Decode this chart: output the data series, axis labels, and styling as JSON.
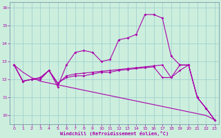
{
  "xlabel": "Windchill (Refroidissement éolien,°C)",
  "bg_color": "#cceedd",
  "line_color": "#aa00aa",
  "grid_color": "#99cccc",
  "x_ticks": [
    0,
    1,
    2,
    3,
    4,
    5,
    6,
    7,
    8,
    9,
    10,
    11,
    12,
    13,
    14,
    15,
    16,
    17,
    18,
    19,
    20,
    21,
    22,
    23
  ],
  "ylim": [
    9.5,
    16.3
  ],
  "yticks": [
    10,
    11,
    12,
    13,
    14,
    15,
    16
  ],
  "line1_y": [
    12.8,
    11.9,
    12.0,
    12.0,
    12.5,
    11.6,
    12.8,
    13.5,
    13.6,
    13.5,
    13.0,
    13.1,
    14.2,
    14.3,
    14.5,
    15.6,
    15.6,
    15.4,
    13.3,
    12.8,
    12.8,
    11.0,
    10.4,
    9.75
  ],
  "line2_y": [
    12.8,
    11.9,
    12.0,
    12.1,
    12.5,
    11.8,
    12.1,
    12.2,
    12.2,
    12.3,
    12.4,
    12.4,
    12.5,
    12.55,
    12.6,
    12.65,
    12.7,
    12.1,
    12.1,
    12.5,
    12.8,
    11.0,
    10.4,
    9.75
  ],
  "line3_y": [
    12.8,
    12.4,
    12.1,
    11.9,
    11.8,
    11.7,
    11.6,
    11.5,
    11.4,
    11.3,
    11.2,
    11.1,
    11.0,
    10.9,
    10.8,
    10.7,
    10.6,
    10.5,
    10.4,
    10.3,
    10.2,
    10.1,
    10.0,
    9.75
  ],
  "line4_y": [
    12.8,
    11.9,
    12.0,
    12.1,
    12.5,
    11.75,
    12.2,
    12.3,
    12.35,
    12.4,
    12.45,
    12.5,
    12.55,
    12.6,
    12.65,
    12.7,
    12.75,
    12.8,
    12.1,
    12.8,
    12.8,
    11.0,
    10.4,
    9.75
  ]
}
